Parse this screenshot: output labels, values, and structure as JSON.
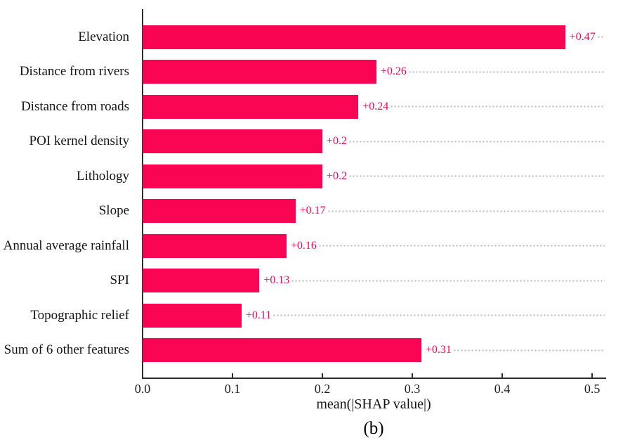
{
  "chart_data": {
    "type": "bar",
    "orientation": "horizontal",
    "xlabel": "mean(|SHAP value|)",
    "caption": "(b)",
    "xlim": [
      0,
      0.514
    ],
    "xticks": [
      {
        "value": 0.0,
        "label": "0.0"
      },
      {
        "value": 0.1,
        "label": "0.1"
      },
      {
        "value": 0.2,
        "label": "0.2"
      },
      {
        "value": 0.3,
        "label": "0.3"
      },
      {
        "value": 0.4,
        "label": "0.4"
      },
      {
        "value": 0.5,
        "label": "0.5"
      }
    ],
    "bars": [
      {
        "label": "Elevation",
        "value": 0.47,
        "value_label": "+0.47"
      },
      {
        "label": "Distance from rivers",
        "value": 0.26,
        "value_label": "+0.26"
      },
      {
        "label": "Distance from roads",
        "value": 0.24,
        "value_label": "+0.24"
      },
      {
        "label": "POI kernel density",
        "value": 0.2,
        "value_label": "+0.2"
      },
      {
        "label": "Lithology",
        "value": 0.2,
        "value_label": "+0.2"
      },
      {
        "label": "Slope",
        "value": 0.17,
        "value_label": "+0.17"
      },
      {
        "label": "Annual average rainfall",
        "value": 0.16,
        "value_label": "+0.16"
      },
      {
        "label": "SPI",
        "value": 0.13,
        "value_label": "+0.13"
      },
      {
        "label": "Topographic relief",
        "value": 0.11,
        "value_label": "+0.11"
      },
      {
        "label": "Sum of 6 other features",
        "value": 0.31,
        "value_label": "+0.31"
      }
    ],
    "colors": {
      "bar": "#fa0553",
      "value_label": "#fa0553",
      "leader_line": "#c9c9c9",
      "axis": "#2e2e2e",
      "text": "#141414"
    },
    "legend": "none",
    "grid": "dotted-leader-lines-per-bar"
  }
}
